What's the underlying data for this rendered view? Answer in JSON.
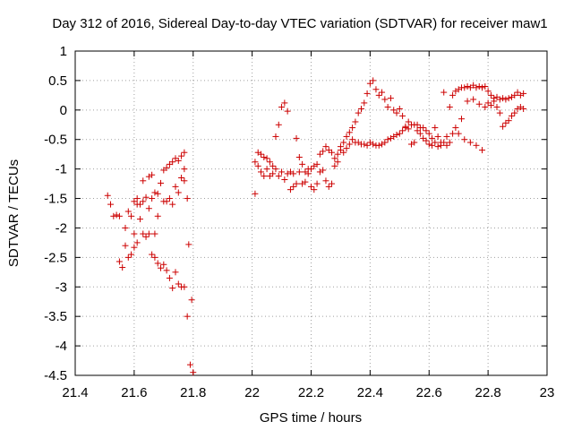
{
  "chart_data": {
    "type": "scatter",
    "title": "Day 312 of 2016, Sidereal Day-to-day VTEC variation (SDTVAR) for receiver maw1",
    "xlabel": "GPS time / hours",
    "ylabel": "SDTVAR / TECUs",
    "xlim": [
      21.4,
      23
    ],
    "ylim": [
      -4.5,
      1
    ],
    "xticks": [
      "21.4",
      "21.6",
      "21.8",
      "22",
      "22.2",
      "22.4",
      "22.6",
      "22.8",
      "23"
    ],
    "yticks": [
      "1",
      "0.5",
      "0",
      "-0.5",
      "-1",
      "-1.5",
      "-2",
      "-2.5",
      "-3",
      "-3.5",
      "-4",
      "-4.5"
    ],
    "grid": true,
    "marker": "+",
    "color": "#cc0000",
    "series": [
      {
        "name": "SDTVAR",
        "points": [
          [
            21.51,
            -1.45
          ],
          [
            21.52,
            -1.6
          ],
          [
            21.53,
            -1.8
          ],
          [
            21.54,
            -1.78
          ],
          [
            21.55,
            -1.8
          ],
          [
            21.55,
            -2.57
          ],
          [
            21.56,
            -2.67
          ],
          [
            21.57,
            -2.3
          ],
          [
            21.57,
            -2.0
          ],
          [
            21.58,
            -1.72
          ],
          [
            21.58,
            -2.5
          ],
          [
            21.59,
            -2.45
          ],
          [
            21.59,
            -1.8
          ],
          [
            21.6,
            -1.55
          ],
          [
            21.6,
            -2.1
          ],
          [
            21.6,
            -2.33
          ],
          [
            21.61,
            -1.5
          ],
          [
            21.61,
            -2.25
          ],
          [
            21.61,
            -1.6
          ],
          [
            21.62,
            -1.85
          ],
          [
            21.62,
            -1.6
          ],
          [
            21.63,
            -1.2
          ],
          [
            21.63,
            -2.1
          ],
          [
            21.63,
            -1.55
          ],
          [
            21.64,
            -1.48
          ],
          [
            21.64,
            -2.15
          ],
          [
            21.65,
            -1.13
          ],
          [
            21.65,
            -1.67
          ],
          [
            21.65,
            -2.1
          ],
          [
            21.66,
            -1.1
          ],
          [
            21.66,
            -1.5
          ],
          [
            21.66,
            -2.45
          ],
          [
            21.67,
            -1.4
          ],
          [
            21.67,
            -2.1
          ],
          [
            21.67,
            -2.5
          ],
          [
            21.68,
            -1.42
          ],
          [
            21.68,
            -2.6
          ],
          [
            21.68,
            -1.8
          ],
          [
            21.69,
            -1.24
          ],
          [
            21.69,
            -2.68
          ],
          [
            21.7,
            -1.02
          ],
          [
            21.7,
            -1.55
          ],
          [
            21.7,
            -2.62
          ],
          [
            21.71,
            -0.98
          ],
          [
            21.71,
            -2.72
          ],
          [
            21.71,
            -1.55
          ],
          [
            21.72,
            -0.92
          ],
          [
            21.72,
            -2.85
          ],
          [
            21.72,
            -1.5
          ],
          [
            21.73,
            -0.88
          ],
          [
            21.73,
            -3.02
          ],
          [
            21.73,
            -1.6
          ],
          [
            21.74,
            -0.82
          ],
          [
            21.74,
            -1.3
          ],
          [
            21.74,
            -2.75
          ],
          [
            21.75,
            -1.4
          ],
          [
            21.75,
            -2.95
          ],
          [
            21.75,
            -0.86
          ],
          [
            21.76,
            -1.15
          ],
          [
            21.76,
            -3.0
          ],
          [
            21.76,
            -0.78
          ],
          [
            21.77,
            -1.0
          ],
          [
            21.77,
            -3.0
          ],
          [
            21.77,
            -1.2
          ],
          [
            21.77,
            -0.72
          ],
          [
            21.78,
            -1.5
          ],
          [
            21.78,
            -3.5
          ],
          [
            21.785,
            -2.28
          ],
          [
            21.79,
            -4.32
          ],
          [
            21.795,
            -3.22
          ],
          [
            21.8,
            -4.45
          ],
          [
            22.01,
            -1.42
          ],
          [
            22.01,
            -0.88
          ],
          [
            22.02,
            -0.95
          ],
          [
            22.02,
            -0.72
          ],
          [
            22.03,
            -0.75
          ],
          [
            22.03,
            -1.05
          ],
          [
            22.04,
            -0.8
          ],
          [
            22.04,
            -1.12
          ],
          [
            22.05,
            -0.82
          ],
          [
            22.05,
            -1.0
          ],
          [
            22.06,
            -0.88
          ],
          [
            22.06,
            -1.12
          ],
          [
            22.07,
            -0.95
          ],
          [
            22.07,
            -1.08
          ],
          [
            22.08,
            -0.45
          ],
          [
            22.08,
            -1.0
          ],
          [
            22.09,
            -0.25
          ],
          [
            22.09,
            -1.12
          ],
          [
            22.1,
            0.05
          ],
          [
            22.1,
            -1.05
          ],
          [
            22.11,
            0.12
          ],
          [
            22.11,
            -1.18
          ],
          [
            22.12,
            -0.02
          ],
          [
            22.12,
            -1.08
          ],
          [
            22.13,
            -1.35
          ],
          [
            22.13,
            -1.05
          ],
          [
            22.14,
            -1.3
          ],
          [
            22.14,
            -1.08
          ],
          [
            22.15,
            -0.48
          ],
          [
            22.15,
            -1.25
          ],
          [
            22.16,
            -0.8
          ],
          [
            22.16,
            -1.05
          ],
          [
            22.17,
            -0.92
          ],
          [
            22.17,
            -1.25
          ],
          [
            22.18,
            -1.05
          ],
          [
            22.18,
            -1.22
          ],
          [
            22.19,
            -1.08
          ],
          [
            22.19,
            -1.0
          ],
          [
            22.2,
            -1.3
          ],
          [
            22.2,
            -1.0
          ],
          [
            22.21,
            -1.35
          ],
          [
            22.21,
            -0.95
          ],
          [
            22.22,
            -1.25
          ],
          [
            22.22,
            -0.92
          ],
          [
            22.23,
            -1.05
          ],
          [
            22.23,
            -0.75
          ],
          [
            22.24,
            -1.02
          ],
          [
            22.24,
            -0.7
          ],
          [
            22.25,
            -1.2
          ],
          [
            22.25,
            -0.62
          ],
          [
            22.26,
            -1.3
          ],
          [
            22.26,
            -0.68
          ],
          [
            22.27,
            -1.25
          ],
          [
            22.27,
            -0.72
          ],
          [
            22.28,
            -0.82
          ],
          [
            22.28,
            -0.95
          ],
          [
            22.29,
            -0.75
          ],
          [
            22.29,
            -0.88
          ],
          [
            22.3,
            -0.62
          ],
          [
            22.3,
            -0.68
          ],
          [
            22.31,
            -0.55
          ],
          [
            22.31,
            -0.72
          ],
          [
            22.32,
            -0.45
          ],
          [
            22.32,
            -0.65
          ],
          [
            22.33,
            -0.58
          ],
          [
            22.33,
            -0.38
          ],
          [
            22.34,
            -0.5
          ],
          [
            22.34,
            -0.3
          ],
          [
            22.35,
            -0.55
          ],
          [
            22.35,
            -0.2
          ],
          [
            22.36,
            -0.55
          ],
          [
            22.36,
            -0.05
          ],
          [
            22.37,
            -0.58
          ],
          [
            22.37,
            0.02
          ],
          [
            22.38,
            -0.58
          ],
          [
            22.38,
            0.12
          ],
          [
            22.39,
            -0.6
          ],
          [
            22.39,
            0.28
          ],
          [
            22.4,
            -0.55
          ],
          [
            22.4,
            0.45
          ],
          [
            22.41,
            -0.58
          ],
          [
            22.41,
            0.5
          ],
          [
            22.42,
            -0.6
          ],
          [
            22.42,
            0.35
          ],
          [
            22.43,
            -0.6
          ],
          [
            22.43,
            0.25
          ],
          [
            22.44,
            -0.58
          ],
          [
            22.44,
            0.3
          ],
          [
            22.45,
            -0.55
          ],
          [
            22.45,
            0.18
          ],
          [
            22.46,
            -0.5
          ],
          [
            22.46,
            0.05
          ],
          [
            22.47,
            -0.48
          ],
          [
            22.47,
            0.2
          ],
          [
            22.48,
            -0.45
          ],
          [
            22.48,
            0.0
          ],
          [
            22.49,
            -0.42
          ],
          [
            22.49,
            -0.05
          ],
          [
            22.5,
            -0.4
          ],
          [
            22.5,
            0.02
          ],
          [
            22.51,
            -0.35
          ],
          [
            22.51,
            -0.1
          ],
          [
            22.52,
            -0.3
          ],
          [
            22.52,
            -0.28
          ],
          [
            22.53,
            -0.32
          ],
          [
            22.53,
            -0.2
          ],
          [
            22.54,
            -0.58
          ],
          [
            22.54,
            -0.25
          ],
          [
            22.55,
            -0.55
          ],
          [
            22.55,
            -0.25
          ],
          [
            22.56,
            -0.35
          ],
          [
            22.56,
            -0.25
          ],
          [
            22.57,
            -0.3
          ],
          [
            22.57,
            -0.4
          ],
          [
            22.58,
            -0.48
          ],
          [
            22.58,
            -0.3
          ],
          [
            22.59,
            -0.52
          ],
          [
            22.59,
            -0.35
          ],
          [
            22.6,
            -0.58
          ],
          [
            22.6,
            -0.4
          ],
          [
            22.61,
            -0.6
          ],
          [
            22.61,
            -0.48
          ],
          [
            22.62,
            -0.55
          ],
          [
            22.62,
            -0.3
          ],
          [
            22.63,
            -0.62
          ],
          [
            22.63,
            -0.45
          ],
          [
            22.64,
            -0.6
          ],
          [
            22.64,
            -0.55
          ],
          [
            22.65,
            -0.55
          ],
          [
            22.65,
            0.3
          ],
          [
            22.66,
            -0.6
          ],
          [
            22.66,
            -0.45
          ],
          [
            22.67,
            0.05
          ],
          [
            22.67,
            -0.55
          ],
          [
            22.68,
            0.25
          ],
          [
            22.68,
            -0.4
          ],
          [
            22.69,
            0.32
          ],
          [
            22.69,
            -0.3
          ],
          [
            22.7,
            0.35
          ],
          [
            22.7,
            -0.4
          ],
          [
            22.71,
            0.38
          ],
          [
            22.71,
            -0.15
          ],
          [
            22.72,
            0.38
          ],
          [
            22.72,
            -0.5
          ],
          [
            22.73,
            0.4
          ],
          [
            22.73,
            0.15
          ],
          [
            22.74,
            0.38
          ],
          [
            22.74,
            -0.55
          ],
          [
            22.75,
            0.42
          ],
          [
            22.75,
            0.18
          ],
          [
            22.76,
            0.38
          ],
          [
            22.76,
            -0.6
          ],
          [
            22.77,
            0.4
          ],
          [
            22.77,
            0.1
          ],
          [
            22.78,
            0.38
          ],
          [
            22.78,
            -0.68
          ],
          [
            22.79,
            0.4
          ],
          [
            22.79,
            0.05
          ],
          [
            22.8,
            0.32
          ],
          [
            22.8,
            0.12
          ],
          [
            22.81,
            0.25
          ],
          [
            22.81,
            0.08
          ],
          [
            22.82,
            0.15
          ],
          [
            22.82,
            0.2
          ],
          [
            22.83,
            0.05
          ],
          [
            22.83,
            0.22
          ],
          [
            22.84,
            -0.05
          ],
          [
            22.84,
            0.18
          ],
          [
            22.85,
            -0.28
          ],
          [
            22.85,
            0.2
          ],
          [
            22.86,
            -0.22
          ],
          [
            22.86,
            0.18
          ],
          [
            22.87,
            -0.18
          ],
          [
            22.87,
            0.2
          ],
          [
            22.88,
            -0.1
          ],
          [
            22.88,
            0.22
          ],
          [
            22.89,
            -0.05
          ],
          [
            22.89,
            0.25
          ],
          [
            22.9,
            0.02
          ],
          [
            22.9,
            0.3
          ],
          [
            22.91,
            0.05
          ],
          [
            22.91,
            0.25
          ],
          [
            22.92,
            0.02
          ],
          [
            22.92,
            0.28
          ]
        ]
      }
    ]
  }
}
